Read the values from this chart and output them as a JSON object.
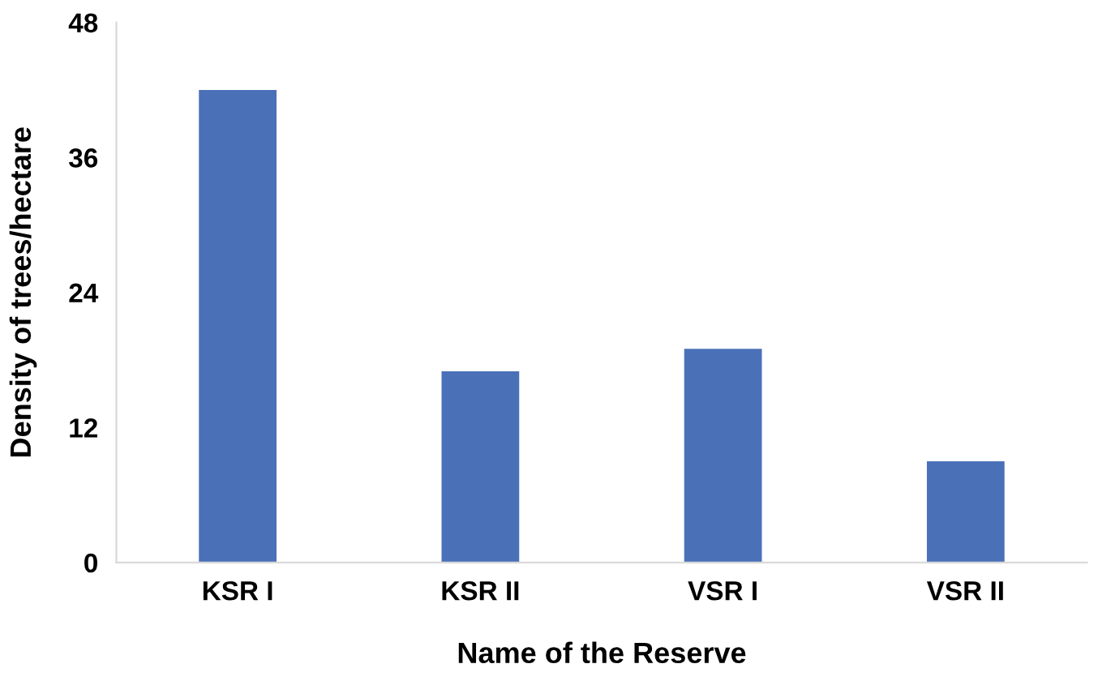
{
  "chart_data": {
    "type": "bar",
    "xlabel": "Name of the Reserve",
    "ylabel": "Density of trees/hectare",
    "categories": [
      "KSR I",
      "KSR II",
      "VSR I",
      "VSR II"
    ],
    "series": [
      {
        "color": "#4a70b8",
        "values": [
          42,
          17,
          19,
          9
        ]
      }
    ],
    "ylim": [
      0,
      48
    ],
    "yticks": [
      0,
      12,
      24,
      36,
      48
    ],
    "grid": false,
    "legend": false
  }
}
